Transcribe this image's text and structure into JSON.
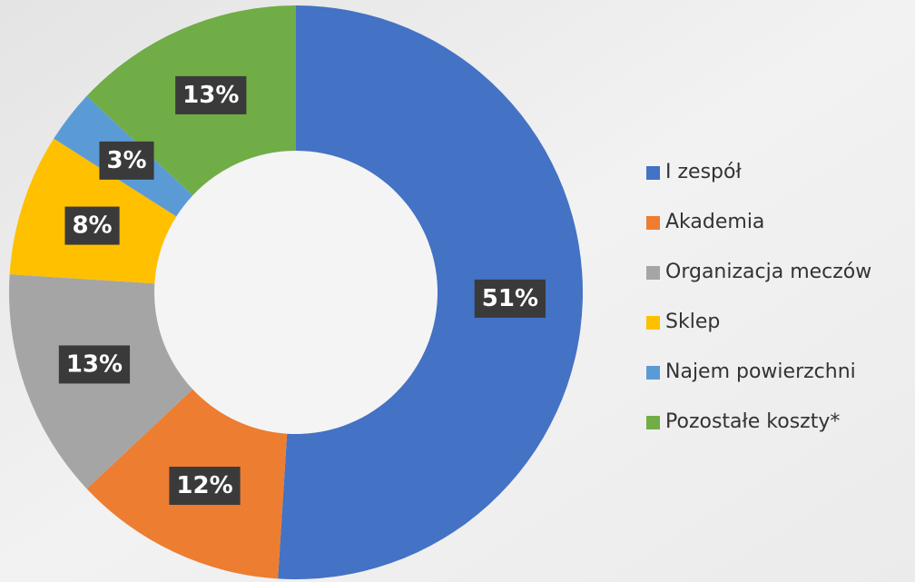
{
  "chart_data": {
    "type": "donut",
    "categories": [
      "I zespół",
      "Akademia",
      "Organizacja meczów",
      "Sklep",
      "Najem powierzchni",
      "Pozostałe koszty*"
    ],
    "values": [
      51,
      12,
      13,
      8,
      3,
      13
    ],
    "value_labels": [
      "51%",
      "12%",
      "13%",
      "8%",
      "3%",
      "13%"
    ],
    "colors": [
      "#4472c4",
      "#ed7d31",
      "#a5a5a5",
      "#ffc000",
      "#5b9bd5",
      "#70ad47"
    ],
    "legend": "right"
  }
}
